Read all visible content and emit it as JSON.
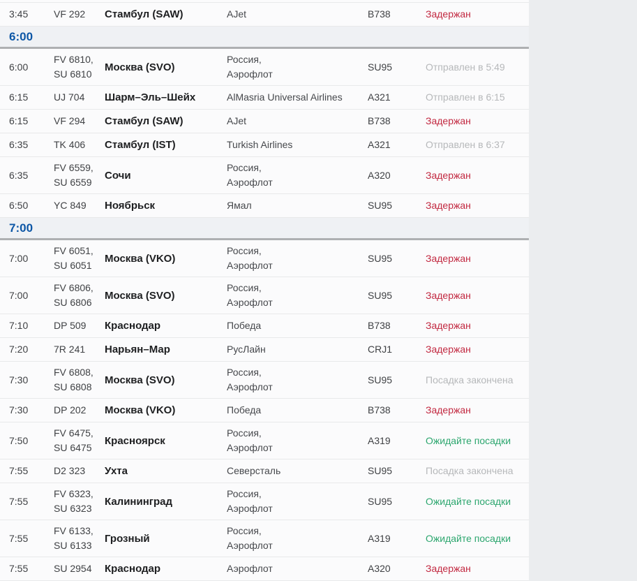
{
  "board": {
    "column_names": [
      "time",
      "flight",
      "destination",
      "airline",
      "aircraft",
      "status"
    ],
    "status_colors": {
      "delayed": "#c22840",
      "departed": "#b6b8ba",
      "boarding_finished": "#b6b8ba",
      "boarding_wait": "#2ca66e"
    },
    "accent_blue": "#0d57a6",
    "sections": [
      {
        "type": "flight",
        "time": "3:45",
        "flight_lines": [
          "VF 292"
        ],
        "destination": "Стамбул (SAW)",
        "airline_lines": [
          "AJet"
        ],
        "aircraft": "B738",
        "status_text": "Задержан",
        "status_kind": "delayed"
      },
      {
        "type": "group",
        "label": "6:00"
      },
      {
        "type": "flight",
        "time": "6:00",
        "flight_lines": [
          "FV 6810,",
          "SU 6810"
        ],
        "destination": "Москва (SVO)",
        "airline_lines": [
          "Россия,",
          "Аэрофлот"
        ],
        "aircraft": "SU95",
        "status_text": "Отправлен в 5:49",
        "status_kind": "departed"
      },
      {
        "type": "flight",
        "time": "6:15",
        "flight_lines": [
          "UJ 704"
        ],
        "destination": "Шарм–Эль–Шейх",
        "airline_lines": [
          "AlMasria Universal Airlines"
        ],
        "aircraft": "A321",
        "status_text": "Отправлен в 6:15",
        "status_kind": "departed"
      },
      {
        "type": "flight",
        "time": "6:15",
        "flight_lines": [
          "VF 294"
        ],
        "destination": "Стамбул (SAW)",
        "airline_lines": [
          "AJet"
        ],
        "aircraft": "B738",
        "status_text": "Задержан",
        "status_kind": "delayed"
      },
      {
        "type": "flight",
        "time": "6:35",
        "flight_lines": [
          "TK 406"
        ],
        "destination": "Стамбул (IST)",
        "airline_lines": [
          "Turkish Airlines"
        ],
        "aircraft": "A321",
        "status_text": "Отправлен в 6:37",
        "status_kind": "departed"
      },
      {
        "type": "flight",
        "time": "6:35",
        "flight_lines": [
          "FV 6559,",
          "SU 6559"
        ],
        "destination": "Сочи",
        "airline_lines": [
          "Россия,",
          "Аэрофлот"
        ],
        "aircraft": "A320",
        "status_text": "Задержан",
        "status_kind": "delayed"
      },
      {
        "type": "flight",
        "time": "6:50",
        "flight_lines": [
          "YC 849"
        ],
        "destination": "Ноябрьск",
        "airline_lines": [
          "Ямал"
        ],
        "aircraft": "SU95",
        "status_text": "Задержан",
        "status_kind": "delayed"
      },
      {
        "type": "group",
        "label": "7:00"
      },
      {
        "type": "flight",
        "time": "7:00",
        "flight_lines": [
          "FV 6051,",
          "SU 6051"
        ],
        "destination": "Москва (VKO)",
        "airline_lines": [
          "Россия,",
          "Аэрофлот"
        ],
        "aircraft": "SU95",
        "status_text": "Задержан",
        "status_kind": "delayed"
      },
      {
        "type": "flight",
        "time": "7:00",
        "flight_lines": [
          "FV 6806,",
          "SU 6806"
        ],
        "destination": "Москва (SVO)",
        "airline_lines": [
          "Россия,",
          "Аэрофлот"
        ],
        "aircraft": "SU95",
        "status_text": "Задержан",
        "status_kind": "delayed"
      },
      {
        "type": "flight",
        "time": "7:10",
        "flight_lines": [
          "DP 509"
        ],
        "destination": "Краснодар",
        "airline_lines": [
          "Победа"
        ],
        "aircraft": "B738",
        "status_text": "Задержан",
        "status_kind": "delayed"
      },
      {
        "type": "flight",
        "time": "7:20",
        "flight_lines": [
          "7R 241"
        ],
        "destination": "Нарьян–Мар",
        "airline_lines": [
          "РусЛайн"
        ],
        "aircraft": "CRJ1",
        "status_text": "Задержан",
        "status_kind": "delayed"
      },
      {
        "type": "flight",
        "time": "7:30",
        "flight_lines": [
          "FV 6808,",
          "SU 6808"
        ],
        "destination": "Москва (SVO)",
        "airline_lines": [
          "Россия,",
          "Аэрофлот"
        ],
        "aircraft": "SU95",
        "status_text": "Посадка закончена",
        "status_kind": "boarding_finished"
      },
      {
        "type": "flight",
        "time": "7:30",
        "flight_lines": [
          "DP 202"
        ],
        "destination": "Москва (VKO)",
        "airline_lines": [
          "Победа"
        ],
        "aircraft": "B738",
        "status_text": "Задержан",
        "status_kind": "delayed"
      },
      {
        "type": "flight",
        "time": "7:50",
        "flight_lines": [
          "FV 6475,",
          "SU 6475"
        ],
        "destination": "Красноярск",
        "airline_lines": [
          "Россия,",
          "Аэрофлот"
        ],
        "aircraft": "A319",
        "status_text": "Ожидайте посадки",
        "status_kind": "boarding_wait"
      },
      {
        "type": "flight",
        "time": "7:55",
        "flight_lines": [
          "D2 323"
        ],
        "destination": "Ухта",
        "airline_lines": [
          "Северсталь"
        ],
        "aircraft": "SU95",
        "status_text": "Посадка закончена",
        "status_kind": "boarding_finished"
      },
      {
        "type": "flight",
        "time": "7:55",
        "flight_lines": [
          "FV 6323,",
          "SU 6323"
        ],
        "destination": "Калининград",
        "airline_lines": [
          "Россия,",
          "Аэрофлот"
        ],
        "aircraft": "SU95",
        "status_text": "Ожидайте посадки",
        "status_kind": "boarding_wait"
      },
      {
        "type": "flight",
        "time": "7:55",
        "flight_lines": [
          "FV 6133,",
          "SU 6133"
        ],
        "destination": "Грозный",
        "airline_lines": [
          "Россия,",
          "Аэрофлот"
        ],
        "aircraft": "A319",
        "status_text": "Ожидайте посадки",
        "status_kind": "boarding_wait"
      },
      {
        "type": "flight",
        "time": "7:55",
        "flight_lines": [
          "SU 2954"
        ],
        "destination": "Краснодар",
        "airline_lines": [
          "Аэрофлот"
        ],
        "aircraft": "A320",
        "status_text": "Задержан",
        "status_kind": "delayed"
      }
    ]
  }
}
